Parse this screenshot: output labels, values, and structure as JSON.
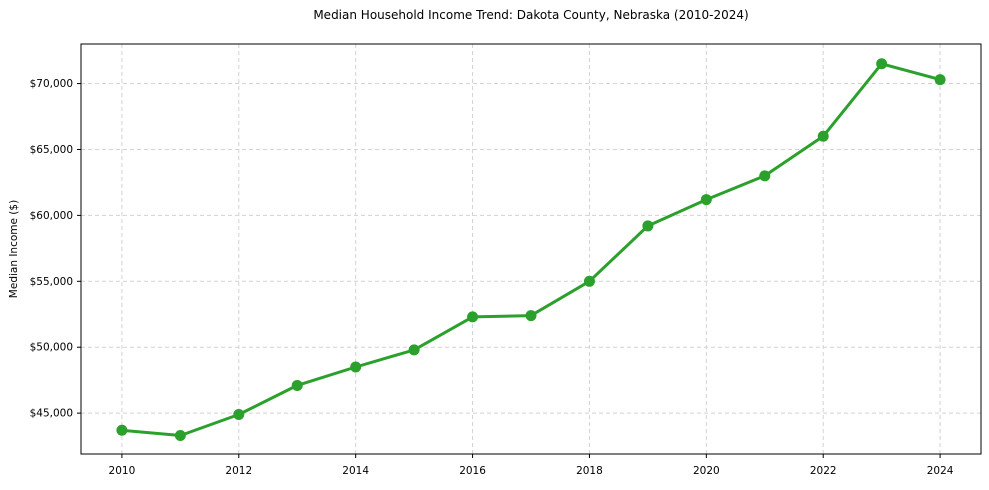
{
  "figure": {
    "title": "Median Household Income Trend: Dakota County, Nebraska (2010-2024)",
    "ylabel": "Median Income ($)"
  },
  "chart_data": {
    "type": "line",
    "title": "Median Household Income Trend: Dakota County, Nebraska (2010-2024)",
    "xlabel": "",
    "ylabel": "Median Income ($)",
    "series": [
      {
        "name": "Median household income",
        "x": [
          2010,
          2011,
          2012,
          2013,
          2014,
          2015,
          2016,
          2017,
          2018,
          2019,
          2020,
          2021,
          2022,
          2023,
          2024
        ],
        "values": [
          43700,
          43300,
          44900,
          47100,
          48500,
          49800,
          52300,
          52400,
          55000,
          59200,
          61200,
          63000,
          66000,
          71500,
          70300
        ]
      }
    ],
    "xticks": [
      2010,
      2012,
      2014,
      2016,
      2018,
      2020,
      2022,
      2024
    ],
    "xtick_labels": [
      "2010",
      "2012",
      "2014",
      "2016",
      "2018",
      "2020",
      "2022",
      "2024"
    ],
    "yticks": [
      45000,
      50000,
      55000,
      60000,
      65000,
      70000
    ],
    "ytick_labels": [
      "$45,000",
      "$50,000",
      "$55,000",
      "$60,000",
      "$65,000",
      "$70,000"
    ],
    "xlim": [
      2009.3,
      2024.7
    ],
    "ylim": [
      41900,
      73000
    ],
    "grid": true,
    "grid_style": "dashed",
    "legend": false,
    "colors": {
      "line": "#2ca02c",
      "marker": "#2ca02c",
      "grid": "#d3d3d3",
      "spine": "#000000",
      "background": "#ffffff"
    },
    "line_width": 3,
    "marker_radius": 5.5
  }
}
